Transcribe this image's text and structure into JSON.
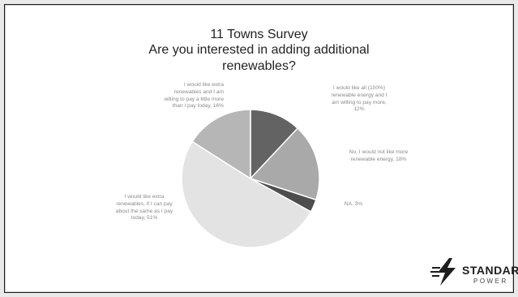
{
  "chart_data": {
    "type": "pie",
    "title": "11 Towns Survey",
    "subtitle_lines": [
      "Are you interested in adding additional",
      "renewables?"
    ],
    "slices": [
      {
        "value": 12,
        "color": "#636363",
        "label_lines": [
          "I would like all (100%)",
          "renewable energy and I",
          "am willing to pay more,",
          "12%"
        ]
      },
      {
        "value": 18,
        "color": "#a9a9a9",
        "label_lines": [
          "No, I would not like more",
          "renewable energy, 18%"
        ]
      },
      {
        "value": 3,
        "color": "#4d4d4d",
        "label_lines": [
          "NA, 3%"
        ]
      },
      {
        "value": 51,
        "color": "#e3e3e3",
        "label_lines": [
          "I would like extra",
          "renewables, if I can pay",
          "about the same as I pay",
          "today, 51%"
        ]
      },
      {
        "value": 16,
        "color": "#b6b6b6",
        "label_lines": [
          "I would like extra",
          "renewables and I am",
          "willing to pay a little more",
          "than I pay today, 16%"
        ]
      }
    ]
  },
  "logo": {
    "word": "STANDARD",
    "sub": "POWER"
  }
}
